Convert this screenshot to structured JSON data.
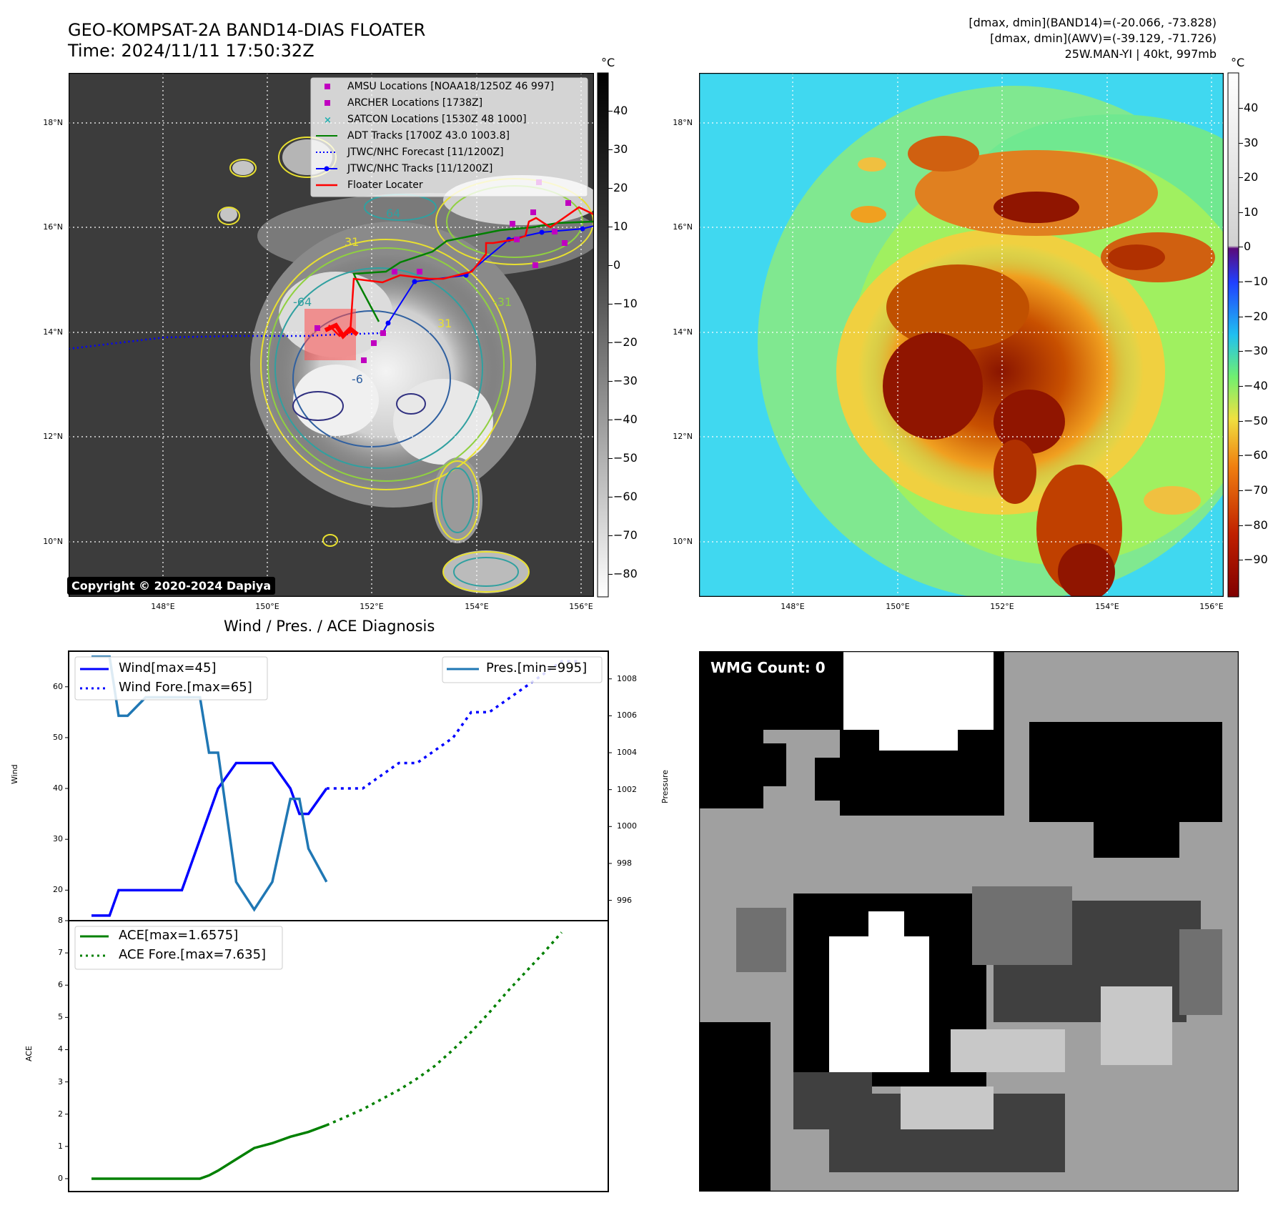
{
  "header": {
    "title_line1": "GEO-KOMPSAT-2A BAND14-DIAS FLOATER",
    "title_line2": "Time: 2024/11/11 17:50:32Z",
    "info_line1": "[dmax, dmin](BAND14)=(-20.066, -73.828)",
    "info_line2": "[dmax, dmin](AWV)=(-39.129, -71.726)",
    "info_line3": "25W.MAN-YI | 40kt, 997mb"
  },
  "map_left": {
    "legend": [
      {
        "label": "AMSU Locations [NOAA18/1250Z 46 997]",
        "color": "#c000c0",
        "style": "square"
      },
      {
        "label": "ARCHER Locations [1738Z]",
        "color": "#c000c0",
        "style": "square"
      },
      {
        "label": "SATCON Locations [1530Z 48 1000]",
        "color": "#20b0b0",
        "style": "cross"
      },
      {
        "label": "ADT Tracks [1700Z 43.0 1003.8]",
        "color": "#008000",
        "style": "line"
      },
      {
        "label": "JTWC/NHC Forecast [11/1200Z]",
        "color": "#0000ff",
        "style": "dotted"
      },
      {
        "label": "JTWC/NHC Tracks [11/1200Z]",
        "color": "#0000ff",
        "style": "line-dot"
      },
      {
        "label": "Floater Locater",
        "color": "#ff0000",
        "style": "line"
      }
    ],
    "copyright": "Copyright © 2020-2024 Dapiya",
    "contour_labels": [
      "64",
      "31",
      "-64",
      "-31",
      "31",
      "-6"
    ],
    "colorbar_unit": "°C",
    "colorbar_ticks": [
      "40",
      "30",
      "20",
      "10",
      "0",
      "−10",
      "−20",
      "−30",
      "−40",
      "−50",
      "−60",
      "−70",
      "−80"
    ]
  },
  "map_right": {
    "colorbar_unit": "°C",
    "colorbar_ticks": [
      "40",
      "30",
      "20",
      "10",
      "0",
      "−10",
      "−20",
      "−30",
      "−40",
      "−50",
      "−60",
      "−70",
      "−80",
      "−90"
    ]
  },
  "map_axes": {
    "lat_labels": [
      "18°N",
      "16°N",
      "14°N",
      "12°N",
      "10°N"
    ],
    "lon_labels": [
      "148°E",
      "150°E",
      "152°E",
      "154°E",
      "156°E"
    ]
  },
  "chart_data": [
    {
      "type": "line",
      "title": "Wind / Pres. / ACE Diagnosis",
      "ylabel": "Wind",
      "y2label": "Pressure",
      "ylim": [
        14,
        67
      ],
      "y2lim": [
        994.9,
        1009.5
      ],
      "yticks": [
        "20",
        "30",
        "40",
        "50",
        "60"
      ],
      "y2ticks": [
        "996",
        "998",
        "1000",
        "1002",
        "1004",
        "1006",
        "1008"
      ],
      "legend_left": [
        "Wind[max=45]",
        "Wind Fore.[max=65]"
      ],
      "legend_right": [
        "Pres.[min=995]"
      ],
      "series": [
        {
          "name": "Wind[max=45]",
          "color": "#0000ff",
          "style": "solid",
          "points": [
            [
              0,
              15
            ],
            [
              1,
              15
            ],
            [
              1.5,
              20
            ],
            [
              2,
              20
            ],
            [
              3,
              20
            ],
            [
              4,
              20
            ],
            [
              5,
              20
            ],
            [
              6,
              30
            ],
            [
              7,
              40
            ],
            [
              8,
              45
            ],
            [
              9,
              45
            ],
            [
              10,
              45
            ],
            [
              11,
              40
            ],
            [
              11.5,
              35
            ],
            [
              12,
              35
            ],
            [
              13,
              40
            ]
          ]
        },
        {
          "name": "Wind Fore.[max=65]",
          "color": "#0000ff",
          "style": "dotted",
          "points": [
            [
              13,
              40
            ],
            [
              14,
              40
            ],
            [
              15,
              40
            ],
            [
              16,
              42.5
            ],
            [
              17,
              45
            ],
            [
              18,
              45
            ],
            [
              19,
              47.5
            ],
            [
              20,
              50
            ],
            [
              21,
              55
            ],
            [
              22,
              55
            ],
            [
              23,
              57.5
            ],
            [
              24,
              60
            ],
            [
              25,
              62.5
            ],
            [
              26,
              65
            ],
            [
              27,
              65
            ]
          ]
        },
        {
          "name": "Pres.[min=995]",
          "color": "#1f77b4",
          "style": "solid",
          "points": [
            [
              0,
              1009.2
            ],
            [
              1,
              1009.2
            ],
            [
              1.5,
              1006.0
            ],
            [
              2,
              1006.0
            ],
            [
              3,
              1007.0
            ],
            [
              4,
              1007.0
            ],
            [
              5,
              1007.0
            ],
            [
              6,
              1007.0
            ],
            [
              6.5,
              1004.0
            ],
            [
              7,
              1004.0
            ],
            [
              8,
              997.0
            ],
            [
              9,
              995.5
            ],
            [
              10,
              997.0
            ],
            [
              11,
              1001.5
            ],
            [
              11.5,
              1001.5
            ],
            [
              12,
              998.8
            ],
            [
              13,
              997.0
            ]
          ]
        }
      ]
    },
    {
      "type": "line",
      "ylabel": "ACE",
      "ylim": [
        -0.4,
        8
      ],
      "yticks": [
        "0",
        "1",
        "2",
        "3",
        "4",
        "5",
        "6",
        "7",
        "8"
      ],
      "legend": [
        "ACE[max=1.6575]",
        "ACE Fore.[max=7.635]"
      ],
      "series": [
        {
          "name": "ACE[max=1.6575]",
          "color": "#008000",
          "style": "solid",
          "points": [
            [
              0,
              0
            ],
            [
              1,
              0
            ],
            [
              2,
              0
            ],
            [
              3,
              0
            ],
            [
              4,
              0
            ],
            [
              5,
              0
            ],
            [
              6,
              0
            ],
            [
              6.5,
              0.1
            ],
            [
              7,
              0.25
            ],
            [
              8,
              0.6
            ],
            [
              9,
              0.95
            ],
            [
              10,
              1.1
            ],
            [
              11,
              1.3
            ],
            [
              12,
              1.45
            ],
            [
              13,
              1.6575
            ]
          ]
        },
        {
          "name": "ACE Fore.[max=7.635]",
          "color": "#008000",
          "style": "dotted",
          "points": [
            [
              13,
              1.6575
            ],
            [
              14,
              1.9
            ],
            [
              15,
              2.15
            ],
            [
              16,
              2.45
            ],
            [
              17,
              2.75
            ],
            [
              18,
              3.1
            ],
            [
              19,
              3.5
            ],
            [
              20,
              4.0
            ],
            [
              21,
              4.55
            ],
            [
              22,
              5.15
            ],
            [
              23,
              5.8
            ],
            [
              24,
              6.4
            ],
            [
              25,
              7.0
            ],
            [
              26,
              7.635
            ]
          ]
        }
      ]
    }
  ],
  "wmg": {
    "label": "WMG Count: 0"
  }
}
